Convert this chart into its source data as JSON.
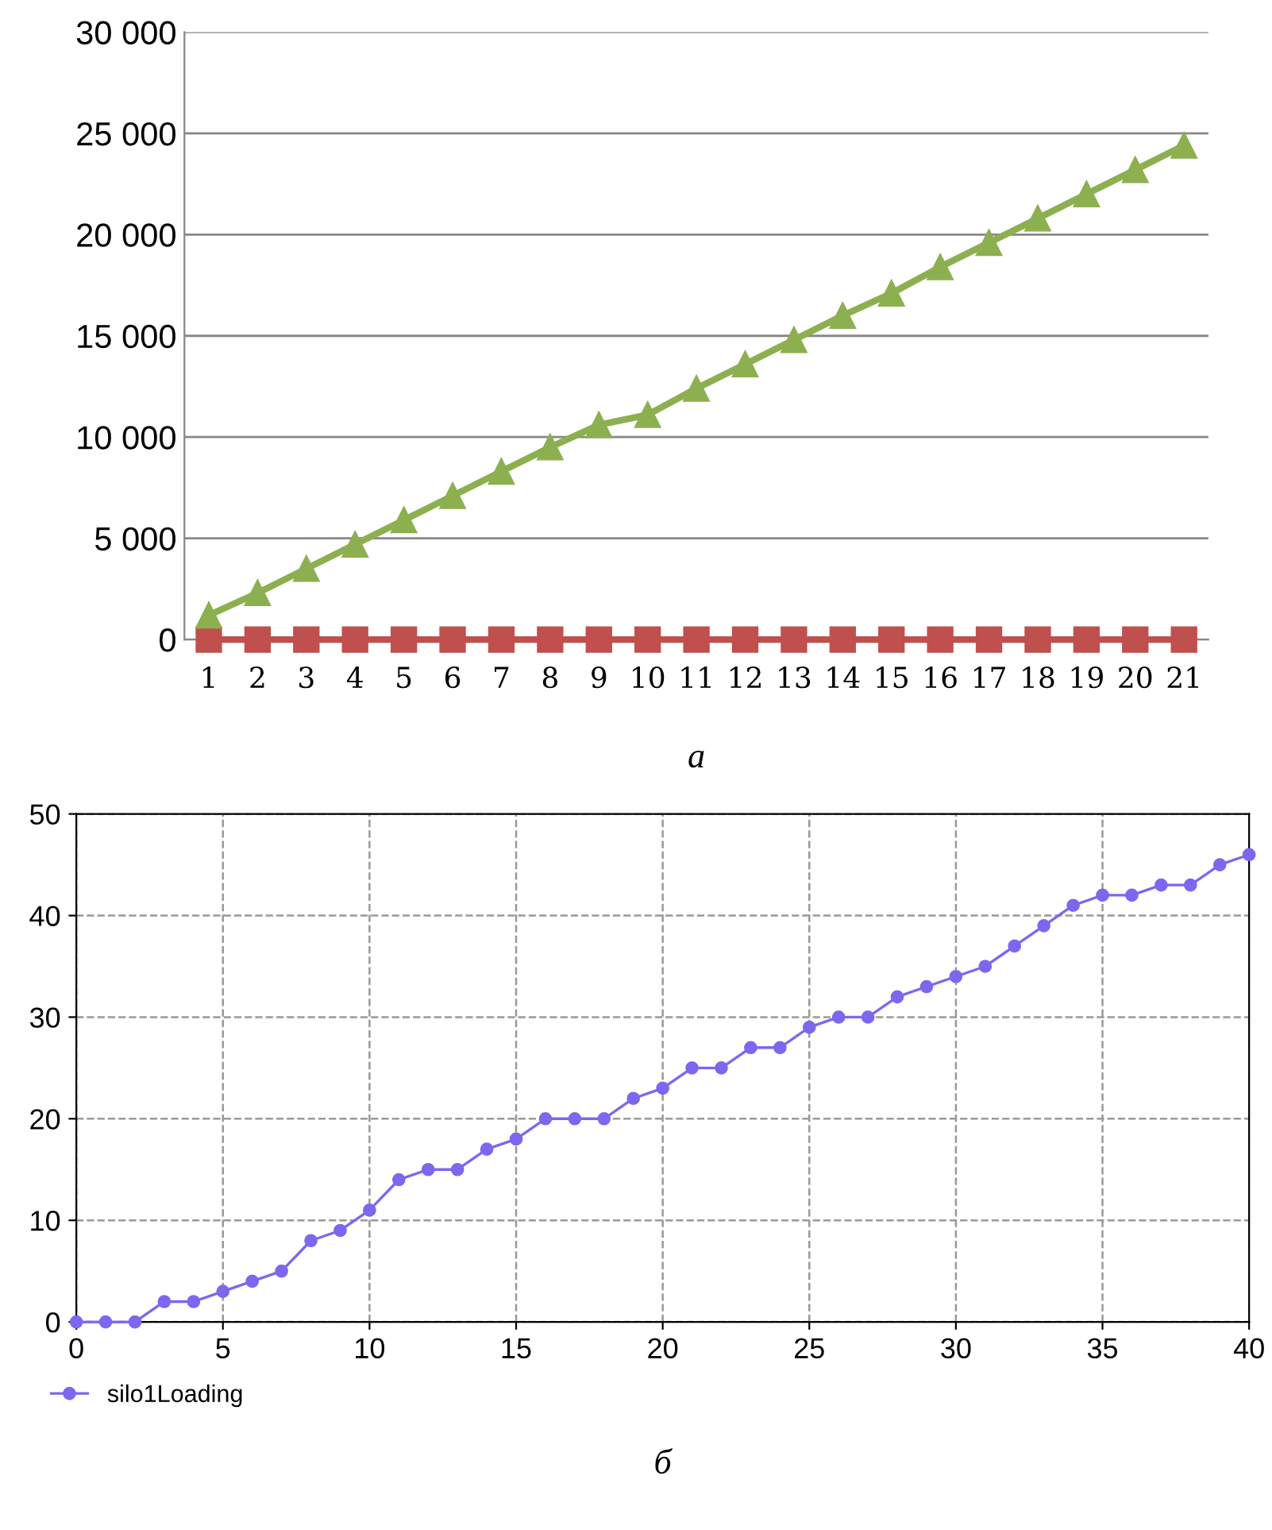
{
  "chart_data": [
    {
      "type": "line",
      "categories": [
        "1",
        "2",
        "3",
        "4",
        "5",
        "6",
        "7",
        "8",
        "9",
        "10",
        "11",
        "12",
        "13",
        "14",
        "15",
        "16",
        "17",
        "18",
        "19",
        "20",
        "21"
      ],
      "series": [
        {
          "color": "#c0504d",
          "marker": "square",
          "values": [
            0,
            0,
            0,
            0,
            0,
            0,
            0,
            0,
            0,
            0,
            0,
            0,
            0,
            0,
            0,
            0,
            0,
            0,
            0,
            0,
            0
          ]
        },
        {
          "color": "#8cb050",
          "marker": "triangle",
          "values": [
            1200,
            2300,
            3500,
            4700,
            5900,
            7100,
            8300,
            9500,
            10600,
            11100,
            12400,
            13600,
            14800,
            16000,
            17100,
            18400,
            19600,
            20800,
            22000,
            23200,
            24400
          ]
        }
      ],
      "ylim": [
        0,
        30000
      ],
      "yticks": [
        0,
        {
          "value": 5000,
          "label": "5 000"
        },
        {
          "value": 10000,
          "label": "10 000"
        },
        {
          "value": 15000,
          "label": "15 000"
        },
        {
          "value": 20000,
          "label": "20 000"
        },
        {
          "value": 25000,
          "label": "25 000"
        },
        {
          "value": 30000,
          "label": "30 000"
        }
      ],
      "grid": "y",
      "annotations": [
        "а"
      ]
    },
    {
      "type": "line",
      "series": [
        {
          "name": "silo1Loading",
          "color": "#7b68ee",
          "marker": "circle",
          "x": [
            0,
            1,
            2,
            3,
            4,
            5,
            6,
            7,
            8,
            9,
            10,
            11,
            12,
            13,
            14,
            15,
            16,
            17,
            18,
            19,
            20,
            21,
            22,
            23,
            24,
            25,
            26,
            27,
            28,
            29,
            30,
            31,
            32,
            33,
            34,
            35,
            36,
            37,
            38,
            39,
            40
          ],
          "values": [
            0,
            0,
            0,
            2,
            2,
            3,
            4,
            5,
            8,
            9,
            11,
            14,
            15,
            15,
            17,
            18,
            20,
            20,
            20,
            22,
            23,
            25,
            25,
            27,
            27,
            29,
            30,
            30,
            32,
            33,
            34,
            35,
            37,
            39,
            41,
            42,
            42,
            43,
            43,
            45,
            46
          ]
        }
      ],
      "xlim": [
        0,
        40
      ],
      "xticks": [
        0,
        5,
        10,
        15,
        20,
        25,
        30,
        35,
        40
      ],
      "ylim": [
        0,
        50
      ],
      "yticks": [
        0,
        10,
        20,
        30,
        40,
        50
      ],
      "grid": true,
      "legend": "bottom left",
      "line_style": "solid",
      "annotations": [
        "б"
      ]
    }
  ]
}
